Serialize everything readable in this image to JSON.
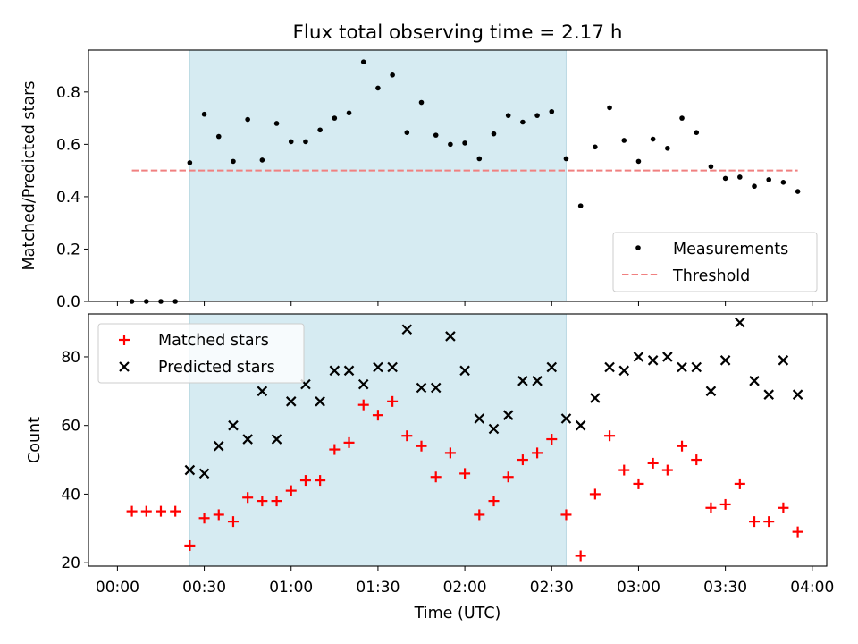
{
  "chart_data": [
    {
      "type": "scatter",
      "title": "Flux total observing time = 2.17 h",
      "xlabel": "",
      "ylabel": "Matched/Predicted stars",
      "xlim": [
        -10,
        245
      ],
      "ylim": [
        0,
        0.96
      ],
      "yticks": [
        0.0,
        0.2,
        0.4,
        0.6,
        0.8
      ],
      "ytick_labels": [
        "0.0",
        "0.2",
        "0.4",
        "0.6",
        "0.8"
      ],
      "xticks": [
        0,
        30,
        60,
        90,
        120,
        150,
        180,
        210,
        240
      ],
      "shaded_span": [
        25,
        155
      ],
      "x_unit": "minutes after 00:00 UTC",
      "series": [
        {
          "name": "Measurements",
          "marker": "dot",
          "color": "#000000",
          "x": [
            5,
            10,
            15,
            20,
            25,
            30,
            35,
            40,
            45,
            50,
            55,
            60,
            65,
            70,
            75,
            80,
            85,
            90,
            95,
            100,
            105,
            110,
            115,
            120,
            125,
            130,
            135,
            140,
            145,
            150,
            155,
            160,
            165,
            170,
            175,
            180,
            185,
            190,
            195,
            200,
            205,
            210,
            215,
            220,
            225,
            230,
            235
          ],
          "values": [
            0.0,
            0.0,
            0.0,
            0.0,
            0.53,
            0.715,
            0.63,
            0.535,
            0.695,
            0.54,
            0.68,
            0.61,
            0.61,
            0.655,
            0.7,
            0.72,
            0.915,
            0.815,
            0.865,
            0.645,
            0.76,
            0.635,
            0.6,
            0.605,
            0.545,
            0.64,
            0.71,
            0.685,
            0.71,
            0.725,
            0.545,
            0.365,
            0.59,
            0.74,
            0.615,
            0.535,
            0.62,
            0.585,
            0.7,
            0.645,
            0.515,
            0.47,
            0.475,
            0.44,
            0.465,
            0.455,
            0.42
          ]
        },
        {
          "name": "Threshold",
          "type": "line",
          "style": "dashed",
          "color": "#f08080",
          "x": [
            5,
            235
          ],
          "values": [
            0.5,
            0.5
          ]
        }
      ],
      "legend": {
        "position": "lower-right",
        "entries": [
          "Measurements",
          "Threshold"
        ]
      }
    },
    {
      "type": "scatter",
      "title": "",
      "xlabel": "Time (UTC)",
      "ylabel": "Count",
      "xlim": [
        -10,
        245
      ],
      "ylim": [
        19,
        92.5
      ],
      "yticks": [
        20,
        40,
        60,
        80
      ],
      "ytick_labels": [
        "20",
        "40",
        "60",
        "80"
      ],
      "xticks": [
        0,
        30,
        60,
        90,
        120,
        150,
        180,
        210,
        240
      ],
      "xtick_labels": [
        "00:00",
        "00:30",
        "01:00",
        "01:30",
        "02:00",
        "02:30",
        "03:00",
        "03:30",
        "04:00"
      ],
      "shaded_span": [
        25,
        155
      ],
      "x_unit": "minutes after 00:00 UTC",
      "series": [
        {
          "name": "Matched stars",
          "marker": "plus",
          "color": "#ff0000",
          "x": [
            5,
            10,
            15,
            20,
            25,
            30,
            35,
            40,
            45,
            50,
            55,
            60,
            65,
            70,
            75,
            80,
            85,
            90,
            95,
            100,
            105,
            110,
            115,
            120,
            125,
            130,
            135,
            140,
            145,
            150,
            155,
            160,
            165,
            170,
            175,
            180,
            185,
            190,
            195,
            200,
            205,
            210,
            215,
            220,
            225,
            230,
            235
          ],
          "values": [
            35,
            35,
            35,
            35,
            25,
            33,
            34,
            32,
            39,
            38,
            38,
            41,
            44,
            44,
            53,
            55,
            66,
            63,
            67,
            57,
            54,
            45,
            52,
            46,
            34,
            38,
            45,
            50,
            52,
            56,
            34,
            22,
            40,
            57,
            47,
            43,
            49,
            47,
            54,
            50,
            36,
            37,
            43,
            32,
            32,
            36,
            29
          ]
        },
        {
          "name": "Predicted stars",
          "marker": "x",
          "color": "#000000",
          "x": [
            25,
            30,
            35,
            40,
            45,
            50,
            55,
            60,
            65,
            70,
            75,
            80,
            85,
            90,
            95,
            100,
            105,
            110,
            115,
            120,
            125,
            130,
            135,
            140,
            145,
            150,
            155,
            160,
            165,
            170,
            175,
            180,
            185,
            190,
            195,
            200,
            205,
            210,
            215,
            220,
            225,
            230,
            235
          ],
          "values": [
            47,
            46,
            54,
            60,
            56,
            70,
            56,
            67,
            72,
            67,
            76,
            76,
            72,
            77,
            77,
            88,
            71,
            71,
            86,
            76,
            62,
            59,
            63,
            73,
            73,
            77,
            62,
            60,
            68,
            77,
            76,
            80,
            79,
            80,
            77,
            77,
            70,
            79,
            90,
            73,
            69,
            79,
            69
          ]
        }
      ],
      "legend": {
        "position": "upper-left",
        "entries": [
          "Matched stars",
          "Predicted stars"
        ]
      }
    }
  ]
}
